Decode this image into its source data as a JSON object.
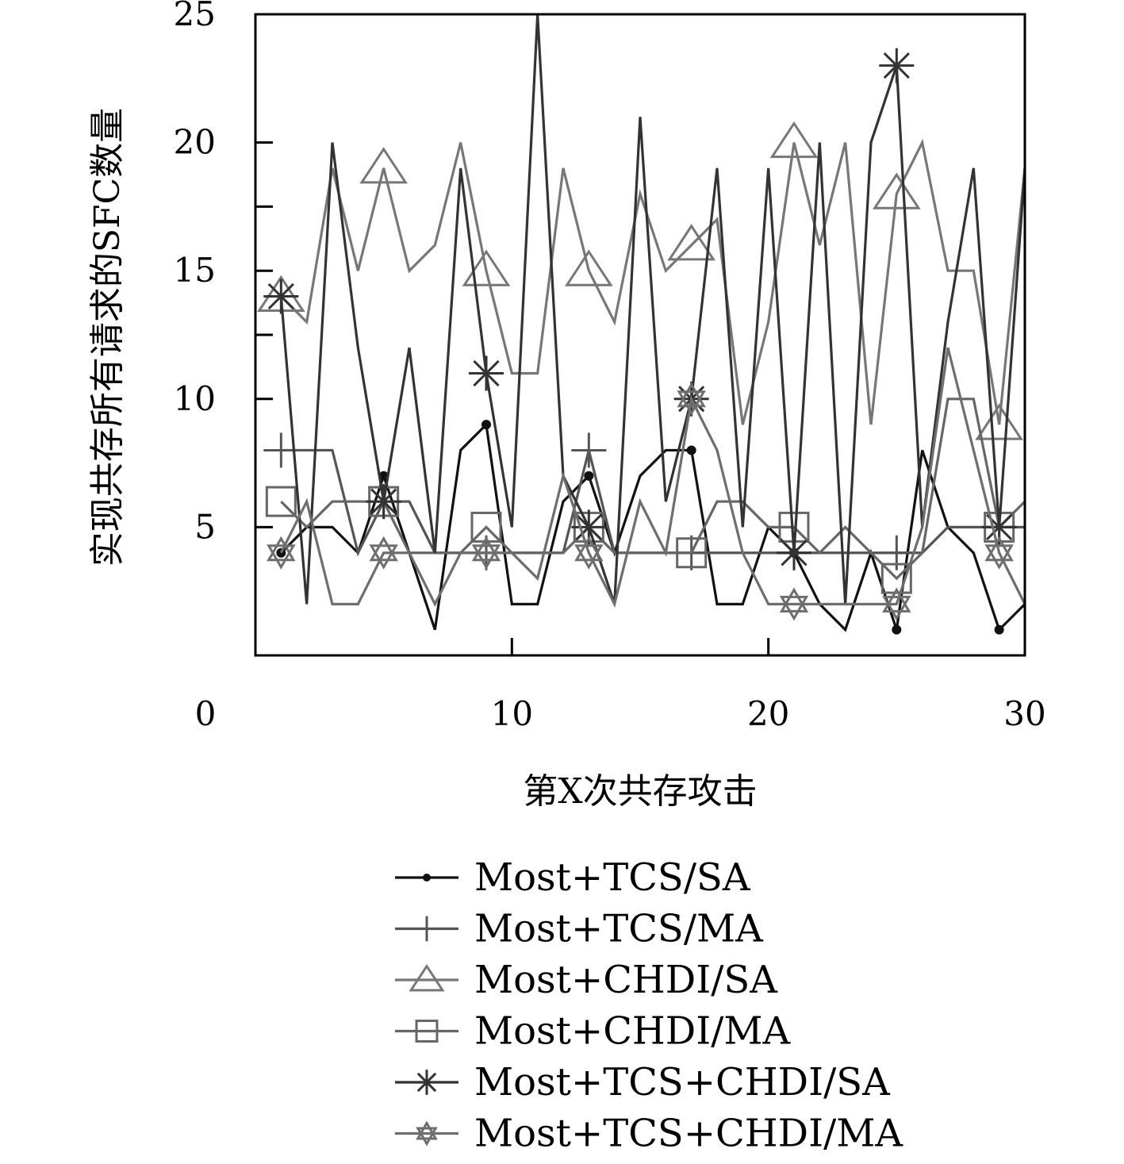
{
  "chart_data": {
    "type": "line",
    "title": "",
    "xlabel": "第X次共存攻击",
    "ylabel": "实现共存所有请求的SFC数量",
    "xlim": [
      0,
      30
    ],
    "ylim": [
      0,
      25
    ],
    "xticks": [
      0,
      10,
      20,
      30
    ],
    "yticks": [
      5,
      10,
      15,
      20,
      25
    ],
    "yticks_minor": [
      12.5,
      17.5
    ],
    "grid": false,
    "legend_position": "bottom",
    "series": [
      {
        "name": "Most+TCS/SA",
        "color": "#111111",
        "marker": "dot",
        "marker_x": [
          1,
          5,
          9,
          13,
          17,
          21,
          25,
          29
        ],
        "x": [
          1,
          2,
          3,
          4,
          5,
          6,
          7,
          8,
          9,
          10,
          11,
          12,
          13,
          14,
          15,
          16,
          17,
          18,
          19,
          20,
          21,
          22,
          23,
          24,
          25,
          26,
          27,
          28,
          29,
          30
        ],
        "y": [
          4,
          5,
          5,
          4,
          7,
          4,
          1,
          8,
          9,
          2,
          2,
          6,
          7,
          4,
          7,
          8,
          8,
          2,
          2,
          5,
          4,
          2,
          1,
          4,
          1,
          8,
          5,
          4,
          1,
          2
        ]
      },
      {
        "name": "Most+TCS/MA",
        "color": "#555555",
        "marker": "plus",
        "marker_x": [
          1,
          5,
          9,
          13,
          17,
          21,
          25,
          29
        ],
        "x": [
          1,
          2,
          3,
          4,
          5,
          6,
          7,
          8,
          9,
          10,
          11,
          12,
          13,
          14,
          15,
          16,
          17,
          18,
          19,
          20,
          21,
          22,
          23,
          24,
          25,
          26,
          27,
          28,
          29,
          30
        ],
        "y": [
          8,
          8,
          8,
          4,
          6,
          6,
          4,
          4,
          4,
          4,
          4,
          4,
          8,
          4,
          4,
          4,
          4,
          4,
          4,
          4,
          4,
          4,
          4,
          4,
          4,
          4,
          5,
          5,
          5,
          5
        ]
      },
      {
        "name": "Most+CHDI/SA",
        "color": "#777777",
        "marker": "triangle",
        "marker_x": [
          1,
          5,
          9,
          13,
          17,
          21,
          25,
          29
        ],
        "x": [
          1,
          2,
          3,
          4,
          5,
          6,
          7,
          8,
          9,
          10,
          11,
          12,
          13,
          14,
          15,
          16,
          17,
          18,
          19,
          20,
          21,
          22,
          23,
          24,
          25,
          26,
          27,
          28,
          29,
          30
        ],
        "y": [
          14,
          13,
          19,
          15,
          19,
          15,
          16,
          20,
          15,
          11,
          11,
          19,
          15,
          13,
          18,
          15,
          16,
          17,
          9,
          13,
          20,
          16,
          20,
          9,
          18,
          20,
          15,
          15,
          9,
          19
        ]
      },
      {
        "name": "Most+CHDI/MA",
        "color": "#666666",
        "marker": "square",
        "marker_x": [
          1,
          5,
          9,
          13,
          17,
          21,
          25,
          29
        ],
        "x": [
          1,
          2,
          3,
          4,
          5,
          6,
          7,
          8,
          9,
          10,
          11,
          12,
          13,
          14,
          15,
          16,
          17,
          18,
          19,
          20,
          21,
          22,
          23,
          24,
          25,
          26,
          27,
          28,
          29,
          30
        ],
        "y": [
          6,
          5,
          6,
          6,
          6,
          4,
          4,
          4,
          5,
          4,
          4,
          4,
          5,
          4,
          4,
          4,
          4,
          6,
          6,
          5,
          5,
          4,
          5,
          4,
          3,
          4,
          10,
          10,
          5,
          6
        ]
      },
      {
        "name": "Most+TCS+CHDI/SA",
        "color": "#333333",
        "marker": "asterisk",
        "marker_x": [
          1,
          5,
          9,
          13,
          17,
          21,
          25,
          29
        ],
        "x": [
          1,
          2,
          3,
          4,
          5,
          6,
          7,
          8,
          9,
          10,
          11,
          12,
          13,
          14,
          15,
          16,
          17,
          18,
          19,
          20,
          21,
          22,
          23,
          24,
          25,
          26,
          27,
          28,
          29,
          30
        ],
        "y": [
          14,
          2,
          20,
          12,
          6,
          12,
          4,
          19,
          11,
          5,
          25,
          7,
          5,
          2,
          21,
          6,
          10,
          19,
          5,
          19,
          4,
          20,
          2,
          20,
          23,
          5,
          13,
          19,
          5,
          19
        ]
      },
      {
        "name": "Most+TCS+CHDI/MA",
        "color": "#6e6e6e",
        "marker": "star",
        "marker_x": [
          1,
          5,
          9,
          13,
          17,
          21,
          25,
          29
        ],
        "x": [
          1,
          2,
          3,
          4,
          5,
          6,
          7,
          8,
          9,
          10,
          11,
          12,
          13,
          14,
          15,
          16,
          17,
          18,
          19,
          20,
          21,
          22,
          23,
          24,
          25,
          26,
          27,
          28,
          29,
          30
        ],
        "y": [
          4,
          6,
          2,
          2,
          4,
          4,
          2,
          4,
          4,
          4,
          3,
          7,
          4,
          2,
          6,
          4,
          10,
          8,
          4,
          2,
          2,
          2,
          2,
          2,
          2,
          5,
          12,
          8,
          4,
          2
        ]
      }
    ]
  }
}
